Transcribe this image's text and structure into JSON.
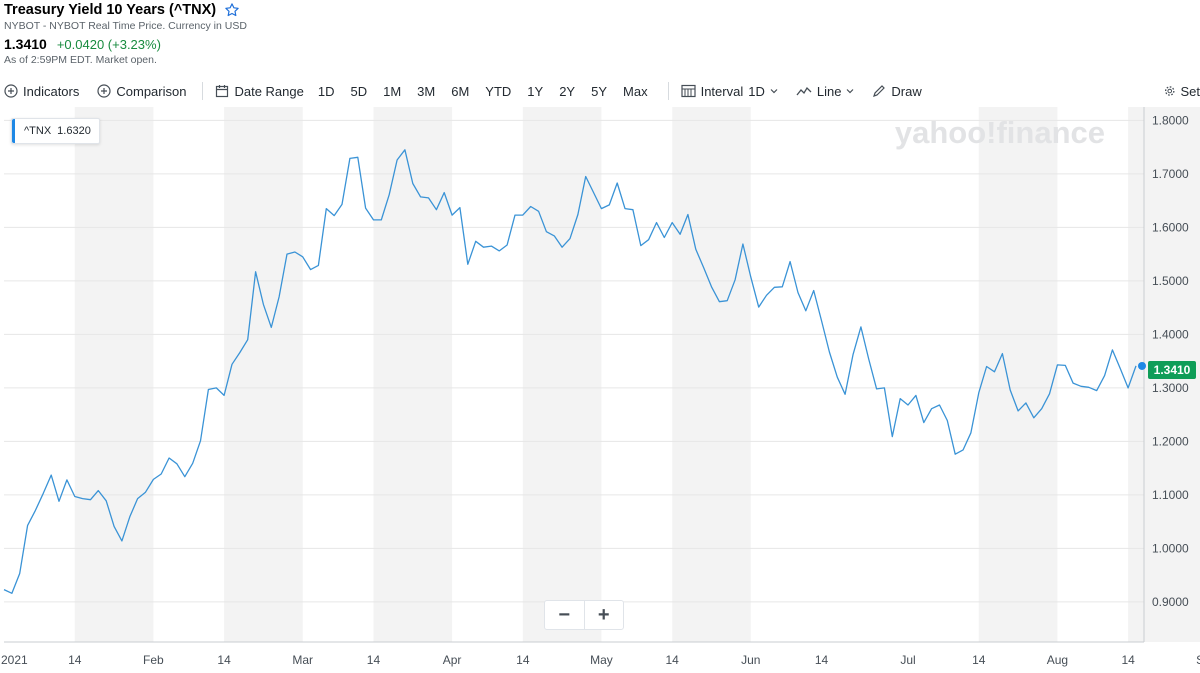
{
  "header": {
    "title": "Treasury Yield 10 Years (^TNX)",
    "source": "NYBOT - NYBOT Real Time Price. Currency in USD",
    "price": "1.3410",
    "change": "+0.0420 (+3.23%)",
    "as_of": "As of 2:59PM EDT. Market open."
  },
  "toolbar": {
    "indicators": "Indicators",
    "comparison": "Comparison",
    "date_range": "Date Range",
    "ranges": [
      "1D",
      "5D",
      "1M",
      "3M",
      "6M",
      "YTD",
      "1Y",
      "2Y",
      "5Y",
      "Max"
    ],
    "interval": "Interval",
    "interval_value": "1D",
    "line": "Line",
    "draw": "Draw",
    "settings": "Set"
  },
  "legend": {
    "symbol": "^TNX",
    "value": "1.6320"
  },
  "watermark": "yahoo!finance",
  "zoom": {
    "minus": "−",
    "plus": "+"
  },
  "colors": {
    "line": "#3a93d6",
    "up": "#0f9d58",
    "change_text": "#188b3f",
    "band": "#f3f3f3"
  },
  "chart_data": {
    "type": "line",
    "series": [
      {
        "name": "^TNX",
        "values": [
          0.923,
          0.916,
          0.953,
          1.043,
          1.071,
          1.103,
          1.137,
          1.088,
          1.128,
          1.097,
          1.093,
          1.091,
          1.108,
          1.089,
          1.041,
          1.014,
          1.059,
          1.093,
          1.105,
          1.129,
          1.139,
          1.169,
          1.158,
          1.134,
          1.159,
          1.201,
          1.297,
          1.3,
          1.286,
          1.344,
          1.366,
          1.39,
          1.517,
          1.456,
          1.413,
          1.47,
          1.55,
          1.554,
          1.545,
          1.521,
          1.529,
          1.635,
          1.622,
          1.643,
          1.729,
          1.731,
          1.636,
          1.614,
          1.614,
          1.661,
          1.726,
          1.745,
          1.682,
          1.657,
          1.655,
          1.633,
          1.665,
          1.623,
          1.637,
          1.531,
          1.574,
          1.563,
          1.565,
          1.556,
          1.567,
          1.623,
          1.623,
          1.639,
          1.63,
          1.592,
          1.584,
          1.563,
          1.579,
          1.624,
          1.695,
          1.665,
          1.635,
          1.642,
          1.683,
          1.635,
          1.633,
          1.566,
          1.577,
          1.609,
          1.581,
          1.609,
          1.587,
          1.624,
          1.559,
          1.525,
          1.489,
          1.461,
          1.463,
          1.502,
          1.569,
          1.507,
          1.451,
          1.473,
          1.488,
          1.489,
          1.536,
          1.478,
          1.444,
          1.482,
          1.425,
          1.367,
          1.32,
          1.288,
          1.362,
          1.414,
          1.354,
          1.298,
          1.3,
          1.209,
          1.28,
          1.268,
          1.286,
          1.235,
          1.261,
          1.268,
          1.239,
          1.176,
          1.184,
          1.216,
          1.291,
          1.34,
          1.33,
          1.364,
          1.296,
          1.257,
          1.272,
          1.244,
          1.261,
          1.289,
          1.343,
          1.342,
          1.309,
          1.303,
          1.301,
          1.295,
          1.323,
          1.371,
          1.336,
          1.3,
          1.341
        ]
      }
    ],
    "x_tick_labels": [
      "2021",
      "14",
      "Feb",
      "14",
      "Mar",
      "14",
      "Apr",
      "14",
      "May",
      "14",
      "Jun",
      "14",
      "Jul",
      "14",
      "Aug",
      "14",
      "Sep"
    ],
    "x_tick_index": [
      0,
      9,
      19,
      28,
      38,
      47,
      57,
      66,
      76,
      85,
      95,
      104,
      115,
      124,
      134,
      143,
      153
    ],
    "band_ranges": [
      [
        9,
        19
      ],
      [
        28,
        38
      ],
      [
        47,
        57
      ],
      [
        66,
        76
      ],
      [
        85,
        95
      ],
      [
        124,
        134
      ],
      [
        143,
        153
      ]
    ],
    "y_ticks": [
      "1.8000",
      "1.7000",
      "1.6000",
      "1.5000",
      "1.4000",
      "1.3000",
      "1.2000",
      "1.1000",
      "1.0000",
      "0.9000"
    ],
    "y_tick_values": [
      1.8,
      1.7,
      1.6,
      1.5,
      1.4,
      1.3,
      1.2,
      1.1,
      1.0,
      0.9
    ],
    "ylim": [
      0.825,
      1.825
    ],
    "last_price_label": "1.3410",
    "grid": true
  }
}
